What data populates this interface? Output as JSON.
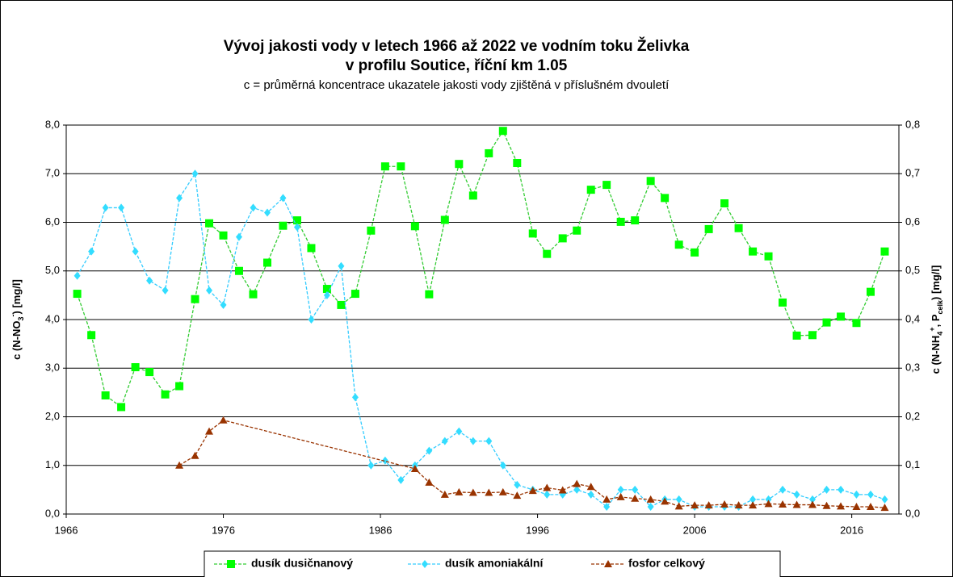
{
  "chart_data": {
    "type": "line",
    "title": [
      "Vývoj jakosti vody v letech 1966 až 2022 ve vodním toku Želivka",
      "v profilu Soutice, říční km 1.05"
    ],
    "subtitle": "c = průměrná koncentrace ukazatele jakosti vody zjištěná v příslušném dvouletí",
    "y_label": [
      "c (N-NO",
      "3",
      "-",
      ") [mg/l]"
    ],
    "y2_label": [
      "c (N-NH",
      "4",
      "+",
      ", P",
      "celk",
      ") [mg/l]"
    ],
    "xlim": [
      1966,
      2019
    ],
    "xticks": [
      1966,
      1976,
      1986,
      1996,
      2006,
      2016
    ],
    "ylim": [
      0,
      8
    ],
    "yticks": [
      {
        "value": 0,
        "label": "0,0"
      },
      {
        "value": 1,
        "label": "1,0"
      },
      {
        "value": 2,
        "label": "2,0"
      },
      {
        "value": 3,
        "label": "3,0"
      },
      {
        "value": 4,
        "label": "4,0"
      },
      {
        "value": 5,
        "label": "5,0"
      },
      {
        "value": 6,
        "label": "6,0"
      },
      {
        "value": 7,
        "label": "7,0"
      },
      {
        "value": 8,
        "label": "8,0"
      }
    ],
    "y2lim": [
      0,
      0.8
    ],
    "y2ticks": [
      {
        "value": 0,
        "label": "0,0"
      },
      {
        "value": 0.1,
        "label": "0,1"
      },
      {
        "value": 0.2,
        "label": "0,2"
      },
      {
        "value": 0.3,
        "label": "0,3"
      },
      {
        "value": 0.4,
        "label": "0,4"
      },
      {
        "value": 0.5,
        "label": "0,5"
      },
      {
        "value": 0.6,
        "label": "0,6"
      },
      {
        "value": 0.7,
        "label": "0,7"
      },
      {
        "value": 0.8,
        "label": "0,8"
      }
    ],
    "grid": true,
    "legend": "bottom",
    "x": [
      1966.7,
      1967.6,
      1968.5,
      1969.5,
      1970.4,
      1971.3,
      1972.3,
      1973.2,
      1974.2,
      1975.1,
      1976.0,
      1977.0,
      1977.9,
      1978.8,
      1979.8,
      1980.7,
      1981.6,
      1982.6,
      1983.5,
      1984.4,
      1985.4,
      1986.3,
      1987.3,
      1988.2,
      1989.1,
      1990.1,
      1991.0,
      1991.9,
      1992.9,
      1993.8,
      1994.7,
      1995.7,
      1996.6,
      1997.6,
      1998.5,
      1999.4,
      2000.4,
      2001.3,
      2002.2,
      2003.2,
      2004.1,
      2005.0,
      2006.0,
      2006.9,
      2007.9,
      2008.8,
      2009.7,
      2010.7,
      2011.6,
      2012.5,
      2013.5,
      2014.4,
      2015.3,
      2016.3,
      2017.2,
      2018.1
    ],
    "series": [
      {
        "name": "dusík dusičnanový",
        "color": "#33cc33",
        "fill": "#00ff00",
        "marker": "square",
        "values": [
          4.53,
          3.68,
          2.44,
          2.2,
          3.02,
          2.92,
          2.46,
          2.63,
          4.42,
          5.98,
          5.73,
          5.0,
          4.52,
          5.17,
          5.93,
          6.04,
          5.47,
          4.63,
          4.3,
          4.53,
          5.83,
          7.15,
          7.15,
          5.92,
          4.52,
          6.05,
          7.2,
          6.55,
          7.42,
          7.88,
          7.22,
          5.77,
          5.35,
          5.67,
          5.83,
          6.67,
          6.77,
          6.01,
          6.04,
          6.85,
          6.5,
          5.54,
          5.38,
          5.86,
          6.39,
          5.88,
          5.4,
          5.3,
          4.35,
          3.67,
          3.68,
          3.94,
          4.06,
          3.93,
          4.57,
          5.4
        ]
      },
      {
        "name": "dusík amoniakální",
        "color": "#33ccff",
        "fill": "#33ddff",
        "marker": "diamond",
        "axis": "y2",
        "values": [
          0.49,
          0.54,
          0.63,
          0.63,
          0.54,
          0.48,
          0.46,
          0.65,
          0.7,
          0.46,
          0.43,
          0.57,
          0.63,
          0.62,
          0.65,
          0.59,
          0.4,
          0.45,
          0.51,
          0.24,
          0.1,
          0.11,
          0.07,
          0.1,
          0.13,
          0.15,
          0.17,
          0.15,
          0.15,
          0.1,
          0.06,
          0.05,
          0.04,
          0.04,
          0.05,
          0.04,
          0.015,
          0.05,
          0.05,
          0.015,
          0.03,
          0.03,
          0.015,
          0.015,
          0.015,
          0.015,
          0.03,
          0.03,
          0.05,
          0.04,
          0.03,
          0.05,
          0.05,
          0.04,
          0.04,
          0.03
        ]
      },
      {
        "name": "fosfor celkový",
        "color": "#993300",
        "fill": "#993300",
        "marker": "triangle",
        "axis": "y2",
        "x": [
          1973.2,
          1974.2,
          1975.1,
          1976.0,
          1988.2,
          1989.1,
          1990.1,
          1991.0,
          1991.9,
          1992.9,
          1993.8,
          1994.7,
          1995.7,
          1996.6,
          1997.6,
          1998.5,
          1999.4,
          2000.4,
          2001.3,
          2002.2,
          2003.2,
          2004.1,
          2005.0,
          2006.0,
          2006.9,
          2007.9,
          2008.8,
          2009.7,
          2010.7,
          2011.6,
          2012.5,
          2013.5,
          2014.4,
          2015.3,
          2016.3,
          2017.2,
          2018.1
        ],
        "values": [
          0.1,
          0.12,
          0.17,
          0.193,
          0.093,
          0.065,
          0.04,
          0.045,
          0.044,
          0.044,
          0.045,
          0.038,
          0.048,
          0.054,
          0.049,
          0.062,
          0.056,
          0.03,
          0.035,
          0.032,
          0.03,
          0.026,
          0.016,
          0.018,
          0.018,
          0.02,
          0.018,
          0.018,
          0.021,
          0.02,
          0.019,
          0.019,
          0.017,
          0.016,
          0.015,
          0.015,
          0.013
        ]
      }
    ]
  }
}
